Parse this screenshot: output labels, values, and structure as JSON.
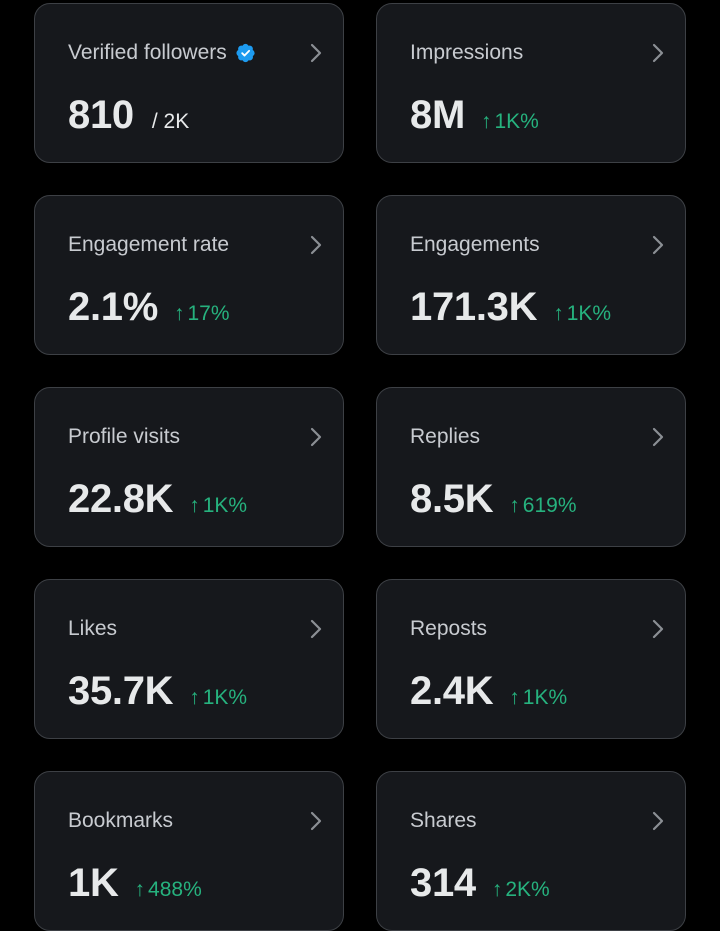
{
  "colors": {
    "background": "#000000",
    "card_background": "#16181c",
    "card_border": "#3d4045",
    "label": "#c8cbd0",
    "value": "#e7e9ea",
    "positive_change": "#26b27e",
    "verified_badge": "#1d9bf0",
    "chevron": "#8b8f94"
  },
  "icons": {
    "chevron": "chevron-right-icon",
    "verified": "verified-badge-icon",
    "change_arrow": "↑"
  },
  "cards": [
    {
      "label": "Verified followers",
      "value": "810",
      "sub": "/ 2K",
      "change": "",
      "verified": true
    },
    {
      "label": "Impressions",
      "value": "8M",
      "sub": "",
      "change": "1K%"
    },
    {
      "label": "Engagement rate",
      "value": "2.1%",
      "sub": "",
      "change": "17%"
    },
    {
      "label": "Engagements",
      "value": "171.3K",
      "sub": "",
      "change": "1K%"
    },
    {
      "label": "Profile visits",
      "value": "22.8K",
      "sub": "",
      "change": "1K%"
    },
    {
      "label": "Replies",
      "value": "8.5K",
      "sub": "",
      "change": "619%"
    },
    {
      "label": "Likes",
      "value": "35.7K",
      "sub": "",
      "change": "1K%"
    },
    {
      "label": "Reposts",
      "value": "2.4K",
      "sub": "",
      "change": "1K%"
    },
    {
      "label": "Bookmarks",
      "value": "1K",
      "sub": "",
      "change": "488%"
    },
    {
      "label": "Shares",
      "value": "314",
      "sub": "",
      "change": "2K%"
    }
  ]
}
